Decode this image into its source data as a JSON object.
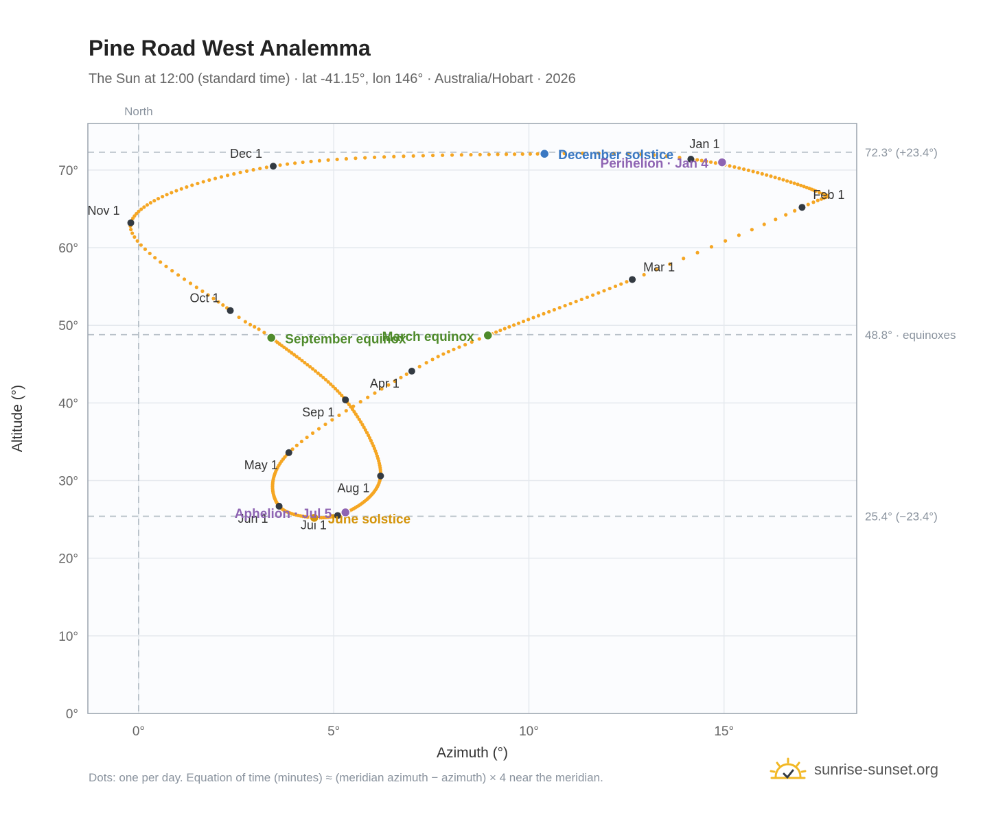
{
  "header": {
    "title": "Pine Road West Analemma",
    "subtitle": "The Sun at 12:00 (standard time) · lat -41.15°, lon 146° · Australia/Hobart · 2026"
  },
  "footer": {
    "note": "Dots: one per day. Equation of time (minutes) ≈ (meridian azimuth − azimuth) × 4 near the meridian.",
    "brand": "sunrise-sunset.org",
    "brand_icon": "sun-logo-icon"
  },
  "chart_data": {
    "type": "scatter",
    "xlabel": "Azimuth (°)",
    "ylabel": "Altitude (°)",
    "xlim": [
      -1.3,
      18.4
    ],
    "ylim": [
      0,
      76
    ],
    "x_ticks": [
      0,
      5,
      10,
      15
    ],
    "y_ticks": [
      0,
      10,
      20,
      30,
      40,
      50,
      60,
      70
    ],
    "tick_suffix": "°",
    "grid": true,
    "meridian": {
      "x": 0,
      "label": "North"
    },
    "reference_lines": [
      {
        "y": 72.3,
        "label": "72.3° (+23.4°)"
      },
      {
        "y": 48.8,
        "label": "48.8° · equinoxes"
      },
      {
        "y": 25.4,
        "label": "25.4° (−23.4°)"
      }
    ],
    "colors": {
      "path": "#f5a623",
      "month_marker": "#333a42",
      "equinox": "#4e8a2a",
      "december_solstice": "#3a78c2",
      "june_solstice": "#d4940a",
      "apsis": "#8e64b3",
      "grid": "#e5e9ee",
      "plot_bg": "#fbfcfe",
      "frame": "#9aa3ad",
      "reference": "#b7c0c8"
    },
    "path_anchors": [
      {
        "x": 14.2,
        "y": 71.4
      },
      {
        "x": 17.35,
        "y": 67.3
      },
      {
        "x": 17.0,
        "y": 65.2
      },
      {
        "x": 12.65,
        "y": 55.9
      },
      {
        "x": 8.95,
        "y": 48.7
      },
      {
        "x": 7.0,
        "y": 44.1
      },
      {
        "x": 3.85,
        "y": 33.6
      },
      {
        "x": 3.6,
        "y": 26.7
      },
      {
        "x": 5.1,
        "y": 25.5
      },
      {
        "x": 6.2,
        "y": 30.6
      },
      {
        "x": 5.3,
        "y": 40.4
      },
      {
        "x": 3.4,
        "y": 48.4
      },
      {
        "x": 2.35,
        "y": 51.9
      },
      {
        "x": -0.2,
        "y": 63.2
      },
      {
        "x": 3.45,
        "y": 70.5
      },
      {
        "x": 10.4,
        "y": 72.1
      },
      {
        "x": 14.2,
        "y": 71.4
      }
    ],
    "path_days_per_segment": [
      31,
      14,
      14,
      28,
      12,
      20,
      31,
      30,
      31,
      31,
      31,
      7,
      23,
      31,
      31,
      10
    ],
    "month_markers": [
      {
        "label": "Jan 1",
        "x": 14.15,
        "y": 71.4,
        "anchor": "middle",
        "dx": 20,
        "dy": -16
      },
      {
        "label": "Feb 1",
        "x": 17.0,
        "y": 65.2,
        "anchor": "start",
        "dx": 16,
        "dy": -12
      },
      {
        "label": "Mar 1",
        "x": 12.65,
        "y": 55.9,
        "anchor": "start",
        "dx": 16,
        "dy": -12
      },
      {
        "label": "Apr 1",
        "x": 7.0,
        "y": 44.1,
        "anchor": "end",
        "dx": -18,
        "dy": 24
      },
      {
        "label": "May 1",
        "x": 3.85,
        "y": 33.6,
        "anchor": "end",
        "dx": -16,
        "dy": 24
      },
      {
        "label": "Jun 1",
        "x": 3.6,
        "y": 26.7,
        "anchor": "end",
        "dx": -16,
        "dy": 24
      },
      {
        "label": "Jul 1",
        "x": 5.1,
        "y": 25.5,
        "anchor": "end",
        "dx": -16,
        "dy": 20
      },
      {
        "label": "Aug 1",
        "x": 6.2,
        "y": 30.6,
        "anchor": "end",
        "dx": -16,
        "dy": 24
      },
      {
        "label": "Sep 1",
        "x": 5.3,
        "y": 40.4,
        "anchor": "end",
        "dx": -16,
        "dy": 24
      },
      {
        "label": "Oct 1",
        "x": 2.35,
        "y": 51.9,
        "anchor": "end",
        "dx": -16,
        "dy": -12
      },
      {
        "label": "Nov 1",
        "x": -0.2,
        "y": 63.2,
        "anchor": "end",
        "dx": -16,
        "dy": -12
      },
      {
        "label": "Dec 1",
        "x": 3.45,
        "y": 70.5,
        "anchor": "end",
        "dx": -16,
        "dy": -12
      }
    ],
    "events": [
      {
        "label": "March equinox",
        "x": 8.95,
        "y": 48.7,
        "color": "#4e8a2a",
        "anchor": "end",
        "dx": -20,
        "dy": 8
      },
      {
        "label": "September equinox",
        "x": 3.4,
        "y": 48.4,
        "color": "#4e8a2a",
        "anchor": "start",
        "dx": 20,
        "dy": 8
      },
      {
        "label": "December solstice",
        "x": 10.4,
        "y": 72.1,
        "color": "#3a78c2",
        "anchor": "start",
        "dx": 20,
        "dy": 8
      },
      {
        "label": "June solstice",
        "x": 4.5,
        "y": 25.2,
        "color": "#d4940a",
        "anchor": "start",
        "dx": 20,
        "dy": 8
      },
      {
        "label": "Perihelion · Jan 4",
        "x": 14.95,
        "y": 71.0,
        "color": "#8e64b3",
        "anchor": "end",
        "dx": -20,
        "dy": 8
      },
      {
        "label": "Aphelion · Jul 5",
        "x": 5.3,
        "y": 25.9,
        "color": "#8e64b3",
        "anchor": "end",
        "dx": -20,
        "dy": 8
      }
    ]
  }
}
